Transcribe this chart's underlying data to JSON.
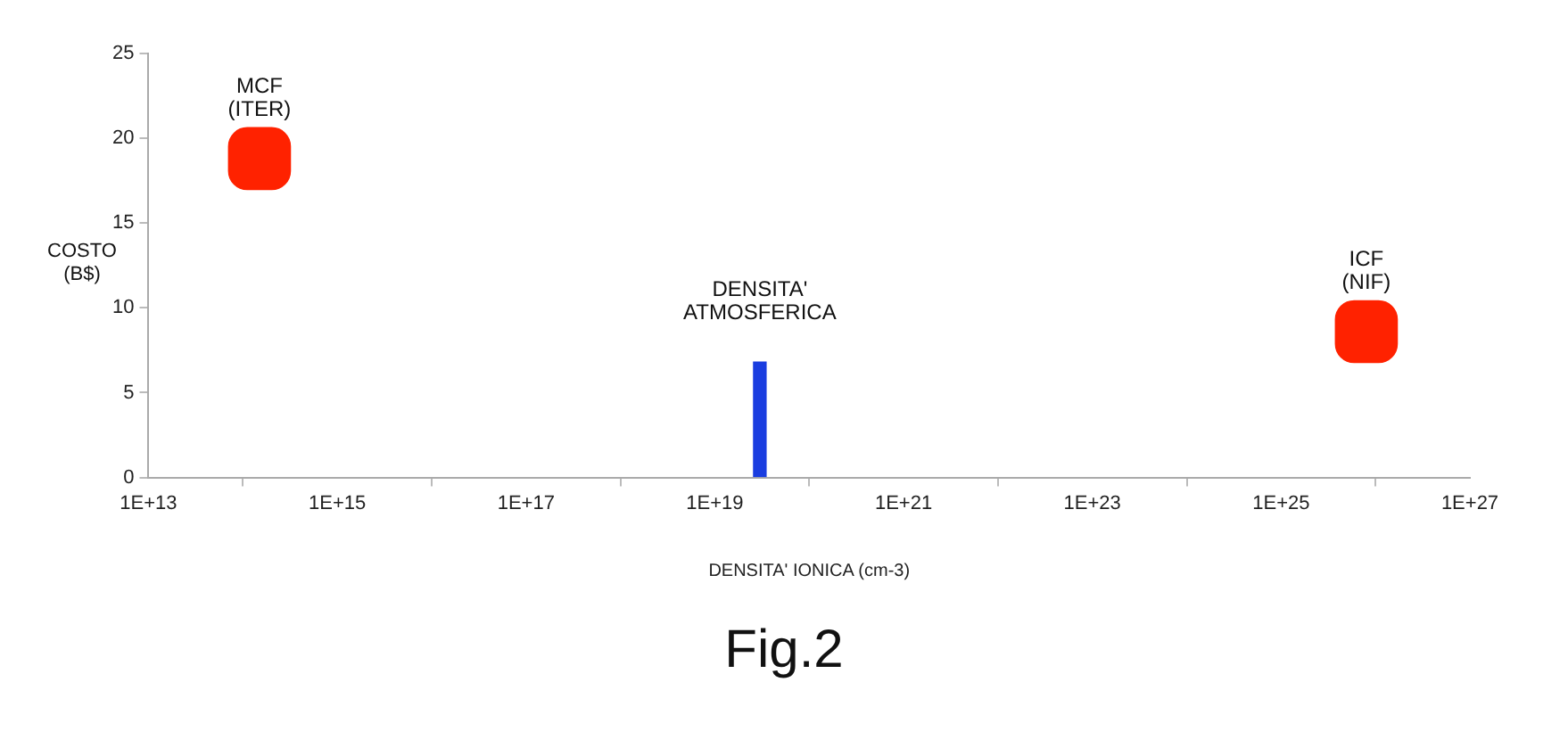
{
  "chart_data": {
    "type": "scatter",
    "xlabel": "DENSITA' IONICA (cm-3)",
    "ylabel": "COSTO\n(B$)",
    "log": "x",
    "xlim": [
      10000000000000.0,
      1e+27
    ],
    "xticks": [
      {
        "value": 10000000000000.0,
        "label": "1E+13"
      },
      {
        "value": 1000000000000000.0,
        "label": "1E+15"
      },
      {
        "value": 1e+17,
        "label": "1E+17"
      },
      {
        "value": 1e+19,
        "label": "1E+19"
      },
      {
        "value": 1e+21,
        "label": "1E+21"
      },
      {
        "value": 1e+23,
        "label": "1E+23"
      },
      {
        "value": 1e+25,
        "label": "1E+25"
      },
      {
        "value": 1e+27,
        "label": "1E+27"
      }
    ],
    "ylim": [
      0,
      25
    ],
    "yticks": [
      0,
      5,
      10,
      15,
      20,
      25
    ],
    "grid": false,
    "legend": false,
    "marker": "square",
    "series": [
      {
        "color": "#ff2200",
        "x": [
          150000000000000.0,
          8e+25
        ],
        "values": [
          18.8,
          8.6
        ]
      },
      {
        "type": "bar",
        "color": "#1a3de0",
        "x": [
          3e+19
        ],
        "values": [
          6.8
        ]
      }
    ],
    "annotations": [
      {
        "text": "MCF\n(ITER)",
        "x": 150000000000000.0,
        "y": 18.8
      },
      {
        "text": "ICF\n(NIF)",
        "x": 8e+25,
        "y": 8.6
      },
      {
        "text": "DENSITA'\nATMOSFERICA",
        "x": 3e+19,
        "y": 6.8
      },
      "Fig.2"
    ]
  }
}
